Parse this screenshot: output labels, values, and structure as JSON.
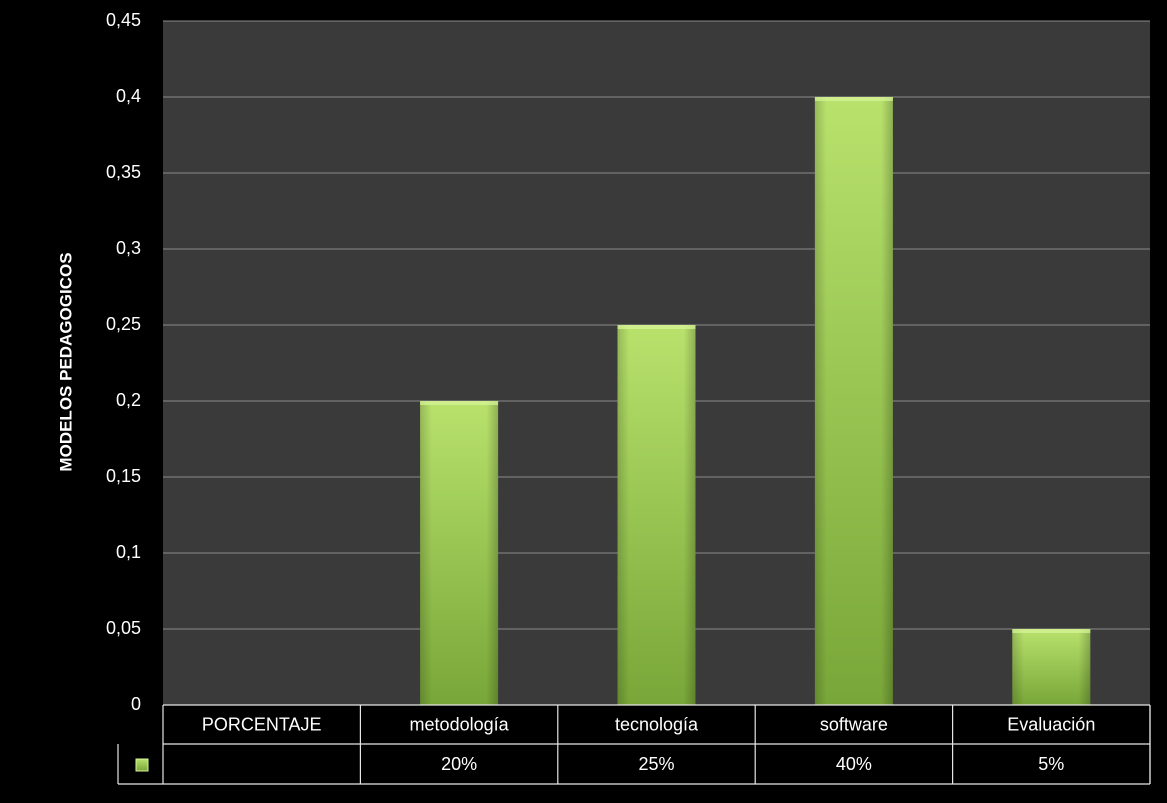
{
  "chart_data": {
    "type": "bar",
    "ylabel": "MODELOS PEDAGOGICOS",
    "xlabel": "",
    "ylim": [
      0,
      0.45
    ],
    "yticks": [
      "0",
      "0,05",
      "0,1",
      "0,15",
      "0,2",
      "0,25",
      "0,3",
      "0,35",
      "0,4",
      "0,45"
    ],
    "categories": [
      "PORCENTAJE",
      "metodología",
      "tecnología",
      "software",
      "Evaluación"
    ],
    "series": [
      {
        "values": [
          null,
          0.2,
          0.25,
          0.4,
          0.05
        ]
      }
    ],
    "data_table": {
      "header_row": [
        "PORCENTAJE",
        "metodología",
        "tecnología",
        "software",
        "Evaluación"
      ],
      "value_row": [
        "",
        "20%",
        "25%",
        "40%",
        "5%"
      ]
    },
    "grid": true,
    "legend": "data table legend key (left of value row)",
    "colors": {
      "background": "#000000",
      "plot_area": "#3a3a3a",
      "gridline": "#8a8a8a",
      "bar_top": "#b5e06a",
      "bar_bottom": "#7aa83a",
      "text": "#ffffff"
    }
  }
}
